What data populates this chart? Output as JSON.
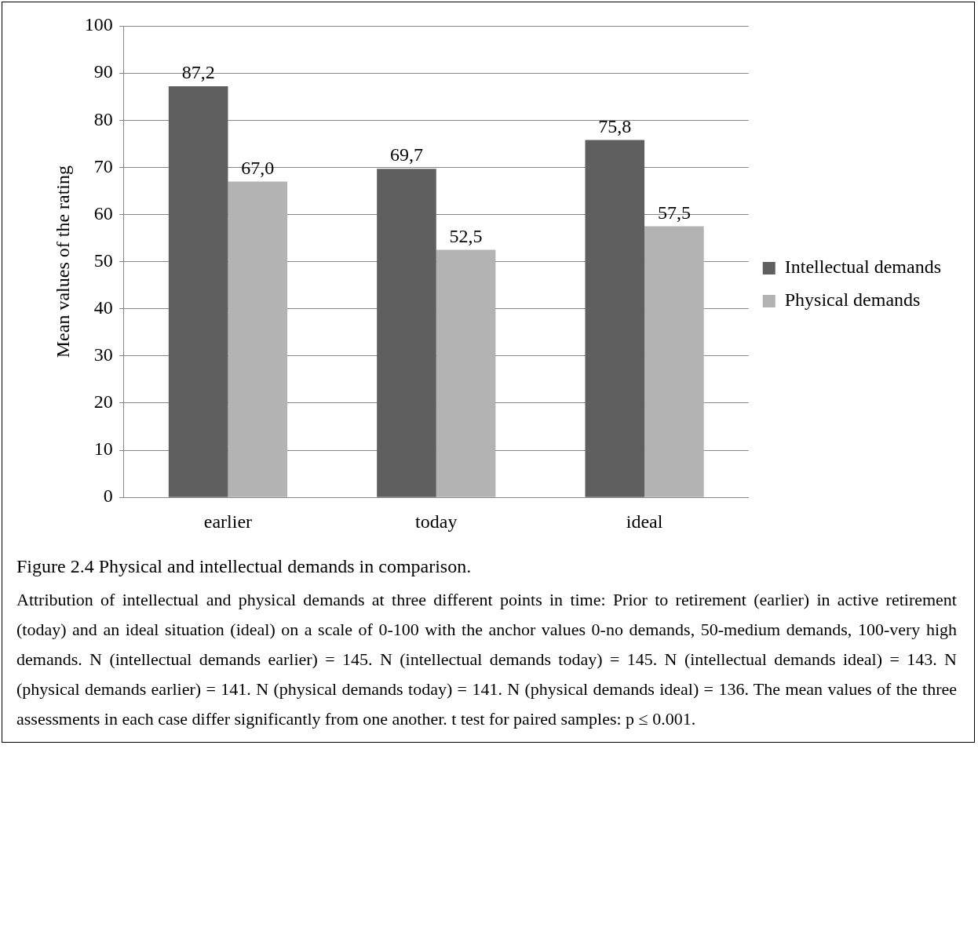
{
  "chart_data": {
    "type": "bar",
    "title": "Figure 2.4 Physical and intellectual demands in comparison.",
    "ylabel": "Mean values of the rating",
    "categories": [
      "earlier",
      "today",
      "ideal"
    ],
    "series": [
      {
        "name": "Intellectual demands",
        "color": "#5f5f5f",
        "values": [
          87.2,
          69.7,
          75.8
        ],
        "value_labels": [
          "87,2",
          "69,7",
          "75,8"
        ]
      },
      {
        "name": "Physical demands",
        "color": "#b3b3b3",
        "values": [
          67.0,
          52.5,
          57.5
        ],
        "value_labels": [
          "67,0",
          "52,5",
          "57,5"
        ]
      }
    ],
    "ylim": [
      0,
      100
    ],
    "yticks": [
      0,
      10,
      20,
      30,
      40,
      50,
      60,
      70,
      80,
      90,
      100
    ],
    "grid": "y",
    "legend": "right",
    "annotations": [
      "Attribution of intellectual and physical demands at three different points in time: Prior to retirement (earlier) in active retirement (today) and an ideal situation (ideal) on a scale of 0-100 with the anchor values 0-no demands, 50-medium demands, 100-very high demands. N (intellectual demands earlier) = 145. N (intellectual demands today) = 145. N (intellectual demands ideal) = 143. N (physical demands earlier) = 141. N (physical demands today) = 141. N (physical demands ideal) = 136. The mean values of the three assessments in each case differ significantly from one another. t test for paired samples: p ≤ 0.001."
    ]
  }
}
